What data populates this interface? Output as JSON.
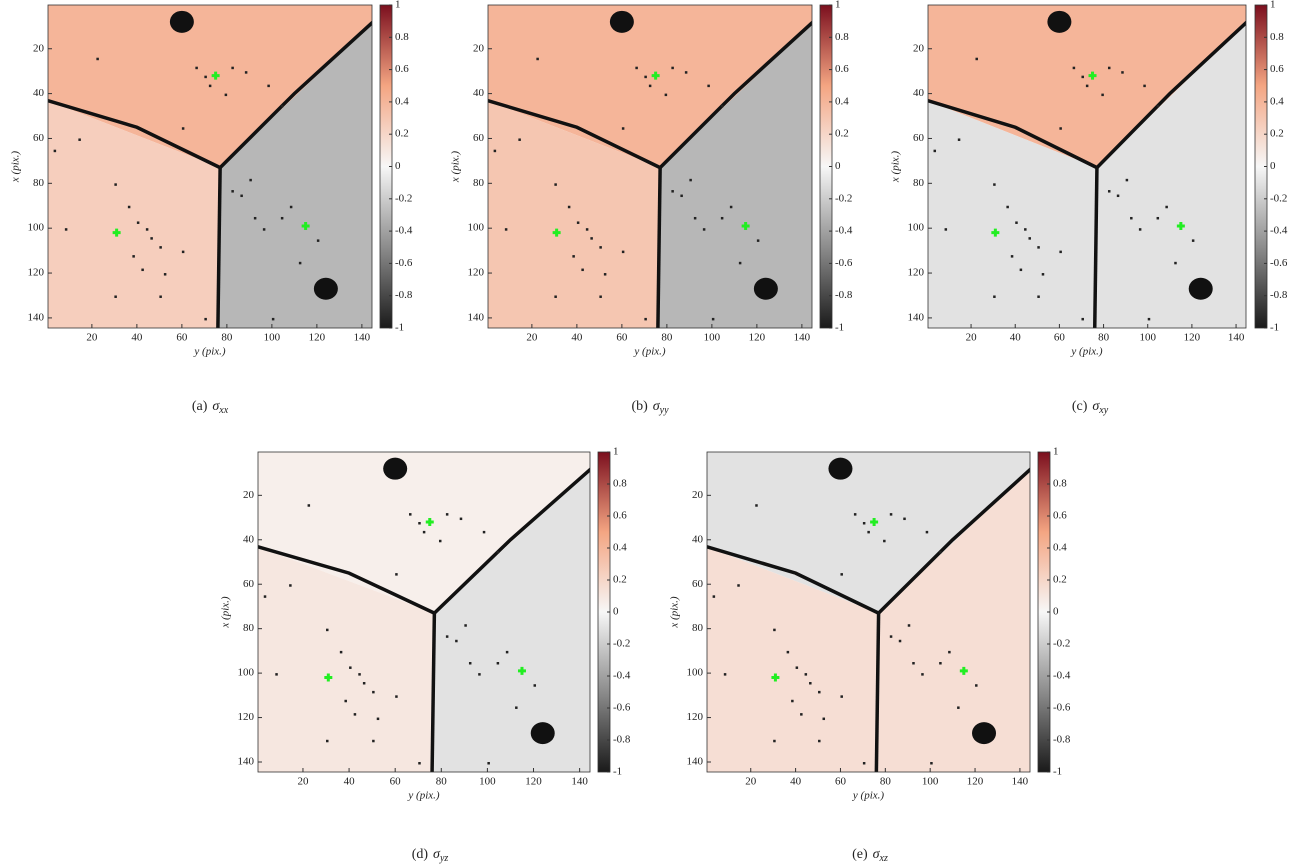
{
  "chart_data": [
    {
      "type": "heatmap",
      "label": "(a)",
      "symbol": "σ",
      "subscript": "xx",
      "xlabel": "y (pix.)",
      "ylabel": "x (pix.)",
      "xlim": [
        0.5,
        144.5
      ],
      "ylim": [
        0.5,
        144.5
      ],
      "xticks": [
        20,
        40,
        60,
        80,
        100,
        120,
        140
      ],
      "yticks": [
        20,
        40,
        60,
        80,
        100,
        120,
        140
      ],
      "values": [
        0.4,
        0.25,
        -0.3
      ],
      "clim": [
        -1,
        1
      ],
      "cticks": [
        1,
        0.8,
        0.6,
        0.4,
        0.2,
        0,
        -0.2,
        -0.4,
        -0.6,
        -0.8,
        -1
      ],
      "colormap": [
        "#1a1a1a",
        "#8c8c8c",
        "#f7f7f7",
        "#f4a582",
        "#7b0f1e"
      ]
    },
    {
      "type": "heatmap",
      "label": "(b)",
      "symbol": "σ",
      "subscript": "yy",
      "xlabel": "y (pix.)",
      "ylabel": "x (pix.)",
      "xlim": [
        0.5,
        144.5
      ],
      "ylim": [
        0.5,
        144.5
      ],
      "xticks": [
        20,
        40,
        60,
        80,
        100,
        120,
        140
      ],
      "yticks": [
        20,
        40,
        60,
        80,
        100,
        120,
        140
      ],
      "values": [
        0.4,
        0.3,
        -0.3
      ],
      "clim": [
        -1,
        1
      ],
      "cticks": [
        1,
        0.8,
        0.6,
        0.4,
        0.2,
        0,
        -0.2,
        -0.4,
        -0.6,
        -0.8,
        -1
      ],
      "colormap": [
        "#1a1a1a",
        "#8c8c8c",
        "#f7f7f7",
        "#f4a582",
        "#7b0f1e"
      ]
    },
    {
      "type": "heatmap",
      "label": "(c)",
      "symbol": "σ",
      "subscript": "xy",
      "xlabel": "y (pix.)",
      "ylabel": "x (pix.)",
      "xlim": [
        0.5,
        144.5
      ],
      "ylim": [
        0.5,
        144.5
      ],
      "xticks": [
        20,
        40,
        60,
        80,
        100,
        120,
        140
      ],
      "yticks": [
        20,
        40,
        60,
        80,
        100,
        120,
        140
      ],
      "values": [
        0.4,
        -0.1,
        -0.1
      ],
      "clim": [
        -1,
        1
      ],
      "cticks": [
        1,
        0.8,
        0.6,
        0.4,
        0.2,
        0,
        -0.2,
        -0.4,
        -0.6,
        -0.8,
        -1
      ],
      "colormap": [
        "#1a1a1a",
        "#8c8c8c",
        "#f7f7f7",
        "#f4a582",
        "#7b0f1e"
      ]
    },
    {
      "type": "heatmap",
      "label": "(d)",
      "symbol": "σ",
      "subscript": "yz",
      "xlabel": "y (pix.)",
      "ylabel": "x (pix.)",
      "xlim": [
        0.5,
        144.5
      ],
      "ylim": [
        0.5,
        144.5
      ],
      "xticks": [
        20,
        40,
        60,
        80,
        100,
        120,
        140
      ],
      "yticks": [
        20,
        40,
        60,
        80,
        100,
        120,
        140
      ],
      "values": [
        0.05,
        0.1,
        -0.1
      ],
      "clim": [
        -1,
        1
      ],
      "cticks": [
        1,
        0.8,
        0.6,
        0.4,
        0.2,
        0,
        -0.2,
        -0.4,
        -0.6,
        -0.8,
        -1
      ],
      "colormap": [
        "#1a1a1a",
        "#8c8c8c",
        "#f7f7f7",
        "#f4a582",
        "#7b0f1e"
      ]
    },
    {
      "type": "heatmap",
      "label": "(e)",
      "symbol": "σ",
      "subscript": "xz",
      "xlabel": "y (pix.)",
      "ylabel": "x (pix.)",
      "xlim": [
        0.5,
        144.5
      ],
      "ylim": [
        0.5,
        144.5
      ],
      "xticks": [
        20,
        40,
        60,
        80,
        100,
        120,
        140
      ],
      "yticks": [
        20,
        40,
        60,
        80,
        100,
        120,
        140
      ],
      "values": [
        -0.1,
        0.15,
        0.15
      ],
      "clim": [
        -1,
        1
      ],
      "cticks": [
        1,
        0.8,
        0.6,
        0.4,
        0.2,
        0,
        -0.2,
        -0.4,
        -0.6,
        -0.8,
        -1
      ],
      "colormap": [
        "#1a1a1a",
        "#8c8c8c",
        "#f7f7f7",
        "#f4a582",
        "#7b0f1e"
      ]
    }
  ]
}
